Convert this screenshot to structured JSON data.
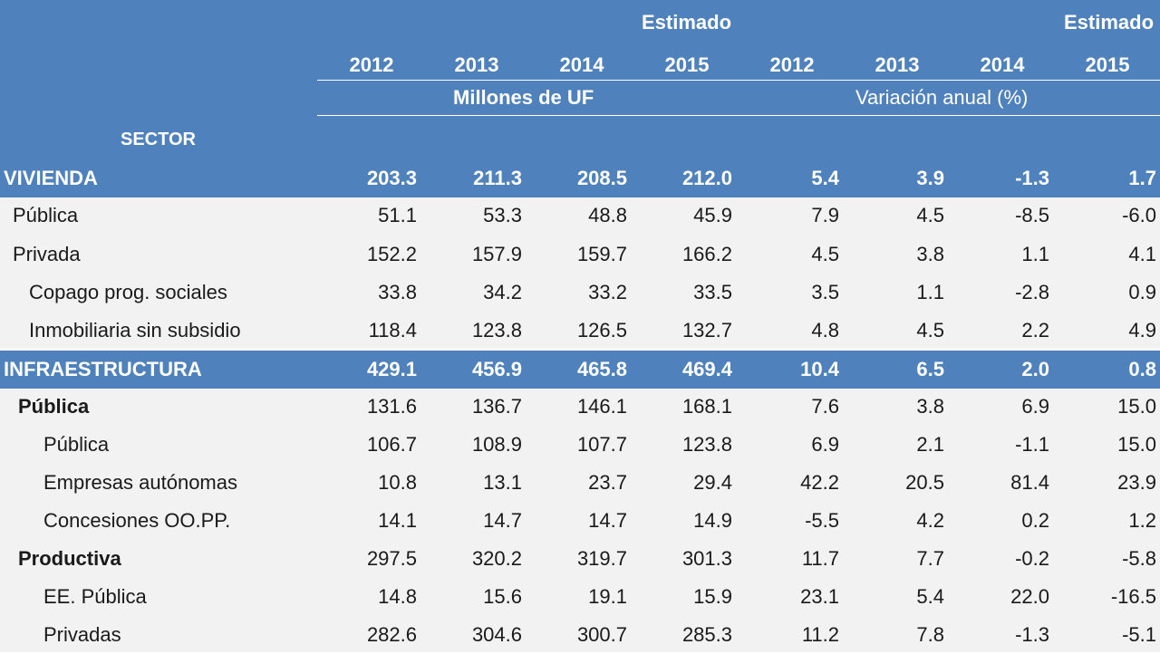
{
  "header": {
    "estimado_left": "Estimado",
    "estimado_right": "Estimado",
    "years": [
      "2012",
      "2013",
      "2014",
      "2015",
      "2012",
      "2013",
      "2014",
      "2015"
    ],
    "group_left": "Millones de UF",
    "group_right": "Variación anual (%)",
    "sector_label": "SECTOR"
  },
  "rows": [
    {
      "label": "VIVIENDA",
      "values": [
        "203.3",
        "211.3",
        "208.5",
        "212.0",
        "5.4",
        "3.9",
        "-1.3",
        "1.7"
      ]
    },
    {
      "label": "Pública",
      "values": [
        "51.1",
        "53.3",
        "48.8",
        "45.9",
        "7.9",
        "4.5",
        "-8.5",
        "-6.0"
      ]
    },
    {
      "label": "Privada",
      "values": [
        "152.2",
        "157.9",
        "159.7",
        "166.2",
        "4.5",
        "3.8",
        "1.1",
        "4.1"
      ]
    },
    {
      "label": "Copago prog. sociales",
      "values": [
        "33.8",
        "34.2",
        "33.2",
        "33.5",
        "3.5",
        "1.1",
        "-2.8",
        "0.9"
      ]
    },
    {
      "label": "Inmobiliaria sin subsidio",
      "values": [
        "118.4",
        "123.8",
        "126.5",
        "132.7",
        "4.8",
        "4.5",
        "2.2",
        "4.9"
      ]
    },
    {
      "label": "INFRAESTRUCTURA",
      "values": [
        "429.1",
        "456.9",
        "465.8",
        "469.4",
        "10.4",
        "6.5",
        "2.0",
        "0.8"
      ]
    },
    {
      "label": "Pública",
      "values": [
        "131.6",
        "136.7",
        "146.1",
        "168.1",
        "7.6",
        "3.8",
        "6.9",
        "15.0"
      ]
    },
    {
      "label": "Pública",
      "values": [
        "106.7",
        "108.9",
        "107.7",
        "123.8",
        "6.9",
        "2.1",
        "-1.1",
        "15.0"
      ]
    },
    {
      "label": "Empresas autónomas",
      "values": [
        "10.8",
        "13.1",
        "23.7",
        "29.4",
        "42.2",
        "20.5",
        "81.4",
        "23.9"
      ]
    },
    {
      "label": "Concesiones OO.PP.",
      "values": [
        "14.1",
        "14.7",
        "14.7",
        "14.9",
        "-5.5",
        "4.2",
        "0.2",
        "1.2"
      ]
    },
    {
      "label": "Productiva",
      "values": [
        "297.5",
        "320.2",
        "319.7",
        "301.3",
        "11.7",
        "7.7",
        "-0.2",
        "-5.8"
      ]
    },
    {
      "label": "EE. Pública",
      "values": [
        "14.8",
        "15.6",
        "19.1",
        "15.9",
        "23.1",
        "5.4",
        "22.0",
        "-16.5"
      ]
    },
    {
      "label": "Privadas",
      "values": [
        "282.6",
        "304.6",
        "300.7",
        "285.3",
        "11.2",
        "7.8",
        "-1.3",
        "-5.1"
      ]
    }
  ]
}
